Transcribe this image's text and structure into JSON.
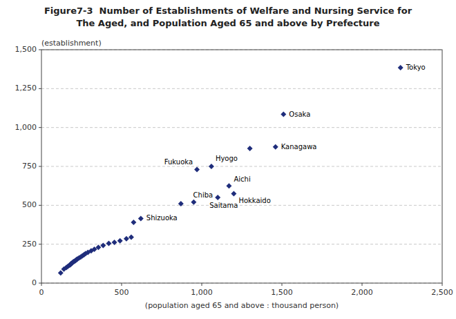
{
  "chart_data": {
    "type": "scatter",
    "title": "Figure7-3  Number of Establishments of Welfare and Nursing Service for",
    "subtitle": "The Aged, and Population Aged 65 and above by Prefecture",
    "y_label": "(establishment)",
    "x_label": "(population aged 65 and above : thousand person)",
    "color": "#1F2D7B",
    "marker": "diamond",
    "grid": "y",
    "xlim": [
      0,
      2500
    ],
    "ylim": [
      0,
      1500
    ],
    "xticks": [
      0,
      500,
      {
        "value": 1000,
        "label": "1,000"
      },
      {
        "value": 1500,
        "label": "1,500"
      },
      {
        "value": 2000,
        "label": "2,000"
      },
      {
        "value": 2500,
        "label": "2,500"
      }
    ],
    "yticks": [
      0,
      250,
      500,
      750,
      {
        "value": 1000,
        "label": "1,000"
      },
      {
        "value": 1250,
        "label": "1,250"
      },
      {
        "value": 1500,
        "label": "1,500"
      }
    ],
    "x": [
      120,
      140,
      155,
      165,
      175,
      180,
      185,
      190,
      195,
      200,
      205,
      210,
      215,
      220,
      225,
      235,
      245,
      255,
      265,
      275,
      290,
      310,
      330,
      355,
      385,
      420,
      455,
      490,
      530,
      560,
      575,
      620,
      870,
      950,
      970,
      1060,
      1100,
      1170,
      1200,
      1300,
      1460,
      1510,
      2240
    ],
    "values": [
      65,
      90,
      100,
      108,
      115,
      118,
      125,
      128,
      133,
      138,
      140,
      143,
      148,
      152,
      155,
      162,
      168,
      175,
      182,
      190,
      198,
      208,
      218,
      230,
      242,
      255,
      262,
      272,
      285,
      295,
      390,
      415,
      510,
      520,
      730,
      750,
      550,
      625,
      575,
      865,
      875,
      1085,
      1385
    ],
    "annotations": [
      {
        "text": "Tokyo",
        "x": 2240,
        "y": 1385
      },
      {
        "text": "Osaka",
        "x": 1510,
        "y": 1085
      },
      {
        "text": "Kanagawa",
        "x": 1460,
        "y": 875
      },
      {
        "text": "Fukuoka",
        "x": 970,
        "y": 730
      },
      {
        "text": "Hyogo",
        "x": 1060,
        "y": 750
      },
      {
        "text": "Chiba",
        "x": 1100,
        "y": 550
      },
      {
        "text": "Aichi",
        "x": 1170,
        "y": 625
      },
      {
        "text": "Hokkaido",
        "x": 1200,
        "y": 575
      },
      {
        "text": "Saitama",
        "x": 1100,
        "y": 550
      },
      {
        "text": "Shizuoka",
        "x": 620,
        "y": 415
      }
    ]
  }
}
